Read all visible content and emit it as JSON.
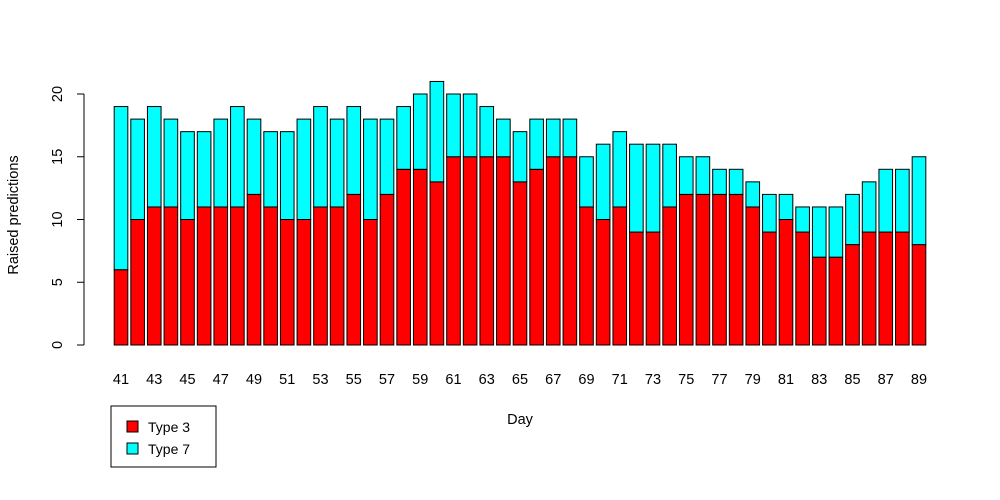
{
  "chart_data": {
    "type": "bar",
    "stacked": true,
    "xlabel": "Day",
    "ylabel": "Raised predictions",
    "ylim": [
      0,
      21
    ],
    "y_ticks": [
      0,
      5,
      10,
      15,
      20
    ],
    "categories": [
      41,
      42,
      43,
      44,
      45,
      46,
      47,
      48,
      49,
      50,
      51,
      52,
      53,
      54,
      55,
      56,
      57,
      58,
      59,
      60,
      61,
      62,
      63,
      64,
      65,
      66,
      67,
      68,
      69,
      70,
      71,
      72,
      73,
      74,
      75,
      76,
      77,
      78,
      79,
      80,
      81,
      82,
      83,
      84,
      85,
      86,
      87,
      88,
      89
    ],
    "x_tick_labels": [
      "41",
      "43",
      "45",
      "47",
      "49",
      "51",
      "53",
      "55",
      "57",
      "59",
      "61",
      "63",
      "65",
      "67",
      "69",
      "71",
      "73",
      "75",
      "77",
      "79",
      "81",
      "83",
      "85",
      "87",
      "89"
    ],
    "series": [
      {
        "name": "Type 3",
        "color": "#ff0000",
        "values": [
          6,
          10,
          11,
          11,
          10,
          11,
          11,
          11,
          12,
          11,
          10,
          10,
          11,
          11,
          12,
          10,
          12,
          14,
          14,
          13,
          15,
          15,
          15,
          15,
          13,
          14,
          15,
          15,
          11,
          10,
          11,
          9,
          9,
          11,
          12,
          12,
          12,
          12,
          11,
          9,
          10,
          9,
          7,
          7,
          8,
          9,
          9,
          9,
          8
        ]
      },
      {
        "name": "Type 7",
        "color": "#00ffff",
        "values": [
          13,
          8,
          8,
          7,
          7,
          6,
          7,
          8,
          6,
          6,
          7,
          8,
          8,
          7,
          7,
          8,
          6,
          5,
          6,
          8,
          5,
          5,
          4,
          3,
          4,
          4,
          3,
          3,
          4,
          6,
          6,
          7,
          7,
          5,
          3,
          3,
          2,
          2,
          2,
          3,
          2,
          2,
          4,
          4,
          4,
          4,
          5,
          5,
          7
        ]
      }
    ],
    "legend": {
      "position": "bottom-left",
      "entries": [
        "Type 3",
        "Type 7"
      ]
    },
    "grid": false
  }
}
